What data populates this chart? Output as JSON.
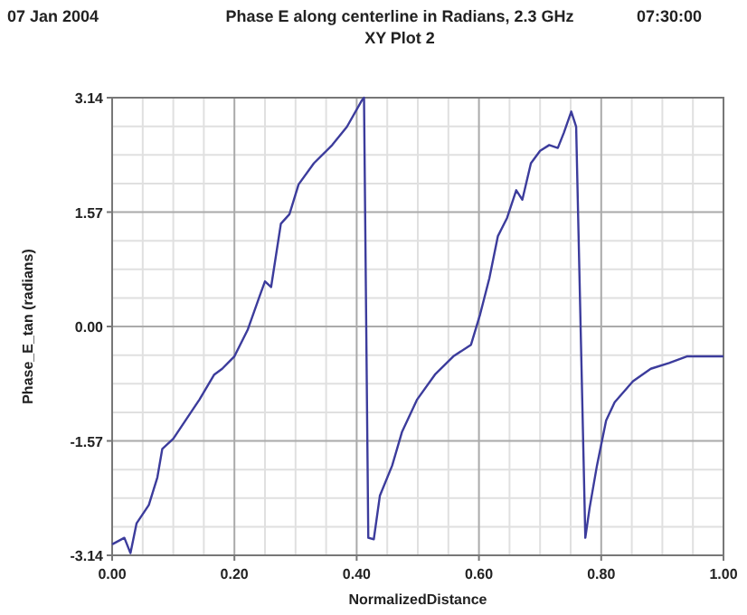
{
  "chart_data": {
    "type": "line",
    "title": "Phase E along centerline in Radians, 2.3 GHz",
    "subtitle": "XY Plot 2",
    "annotations": [
      "07 Jan 2004",
      "07:30:00"
    ],
    "xlabel": "NormalizedDistance",
    "ylabel": "Phase_E_tan (radians)",
    "x": [
      0,
      0.02,
      0.03,
      0.04,
      0.06,
      0.074,
      0.082,
      0.1,
      0.12,
      0.143,
      0.167,
      0.18,
      0.2,
      0.222,
      0.241,
      0.25,
      0.26,
      0.276,
      0.29,
      0.305,
      0.33,
      0.36,
      0.384,
      0.409,
      0.412,
      0.419,
      0.428,
      0.438,
      0.458,
      0.474,
      0.499,
      0.528,
      0.558,
      0.587,
      0.602,
      0.617,
      0.631,
      0.646,
      0.661,
      0.671,
      0.685,
      0.7,
      0.715,
      0.729,
      0.739,
      0.751,
      0.759,
      0.774,
      0.781,
      0.793,
      0.808,
      0.822,
      0.852,
      0.881,
      0.911,
      0.94,
      0.97,
      1
    ],
    "series": [
      {
        "color": "#3c3c9c",
        "values": [
          -2.99,
          -2.9,
          -3.11,
          -2.7,
          -2.45,
          -2.07,
          -1.68,
          -1.54,
          -1.29,
          -1,
          -0.66,
          -0.58,
          -0.41,
          -0.04,
          0.41,
          0.62,
          0.54,
          1.41,
          1.54,
          1.95,
          2.24,
          2.49,
          2.74,
          3.11,
          3.14,
          -2.9,
          -2.92,
          -2.32,
          -1.91,
          -1.45,
          -1,
          -0.66,
          -0.41,
          -0.25,
          0.17,
          0.66,
          1.24,
          1.49,
          1.87,
          1.74,
          2.24,
          2.41,
          2.49,
          2.45,
          2.66,
          2.95,
          2.74,
          -2.9,
          -2.49,
          -1.91,
          -1.29,
          -1.04,
          -0.75,
          -0.58,
          -0.5,
          -0.41,
          -0.41,
          -0.41
        ]
      }
    ],
    "xlim": [
      0,
      1
    ],
    "xticks": [
      {
        "value": 0,
        "label": "0.00"
      },
      {
        "value": 0.2,
        "label": "0.20"
      },
      {
        "value": 0.4,
        "label": "0.40"
      },
      {
        "value": 0.6,
        "label": "0.60"
      },
      {
        "value": 0.8,
        "label": "0.80"
      },
      {
        "value": 1,
        "label": "1.00"
      }
    ],
    "ylim": [
      -3.14,
      3.14
    ],
    "yticks": [
      -3.14,
      -1.57,
      {
        "value": 0,
        "label": "0.00"
      },
      1.57,
      3.14
    ],
    "grid": true,
    "line_style": "solid",
    "marker": "none"
  }
}
